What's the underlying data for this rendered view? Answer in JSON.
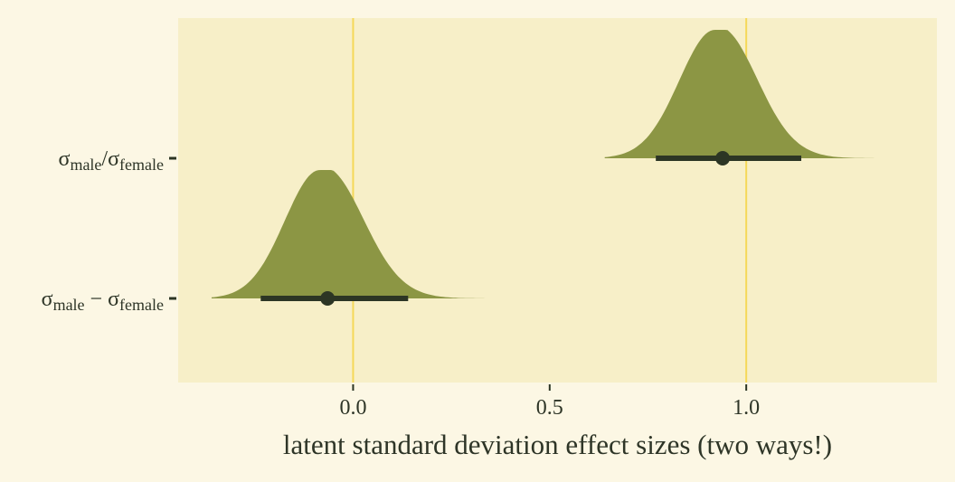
{
  "chart_data": {
    "type": "halfeye",
    "xlabel": "latent standard deviation effect sizes (two ways!)",
    "xlim": [
      -0.445,
      1.485
    ],
    "x_ticks": [
      {
        "value": 0.0,
        "label": "0.0"
      },
      {
        "value": 0.5,
        "label": "0.5"
      },
      {
        "value": 1.0,
        "label": "1.0"
      }
    ],
    "reference_lines": [
      0,
      1
    ],
    "grid": false,
    "colors": {
      "page_background": "#FCF7E4",
      "panel_background": "#F7EFC8",
      "density_fill": "#8C9644",
      "interval": "#2C3524",
      "reference_line": "#F5D858",
      "text": "#2E3527"
    },
    "rows": [
      {
        "label_parts": [
          {
            "t": "σ",
            "sub": false
          },
          {
            "t": "male",
            "sub": true
          },
          {
            "t": "/σ",
            "sub": false
          },
          {
            "t": "female",
            "sub": true
          }
        ],
        "point": 0.94,
        "interval": [
          0.77,
          1.14
        ],
        "density_range": [
          0.64,
          1.39
        ],
        "density_mode": 0.92
      },
      {
        "label_parts": [
          {
            "t": "σ",
            "sub": false
          },
          {
            "t": "male",
            "sub": true
          },
          {
            "t": " − σ",
            "sub": false
          },
          {
            "t": "female",
            "sub": true
          }
        ],
        "point": -0.065,
        "interval": [
          -0.235,
          0.14
        ],
        "density_range": [
          -0.36,
          0.4
        ],
        "density_mode": -0.085
      }
    ]
  }
}
